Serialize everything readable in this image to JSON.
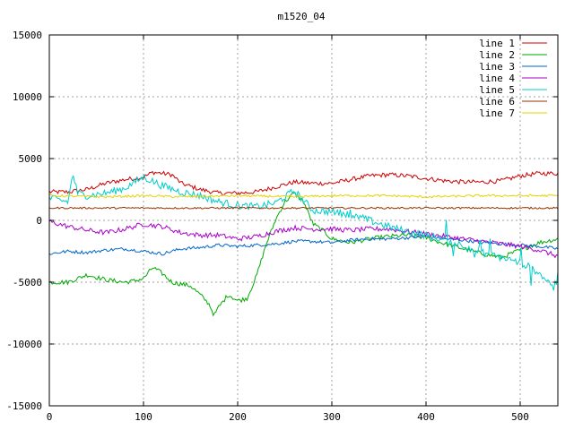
{
  "chart_data": {
    "type": "line",
    "title": "m1520_04",
    "xlabel": "",
    "ylabel": "",
    "xlim": [
      0,
      540
    ],
    "ylim": [
      -15000,
      15000
    ],
    "xticks": [
      0,
      100,
      200,
      300,
      400,
      500
    ],
    "yticks": [
      -15000,
      -10000,
      -5000,
      0,
      5000,
      10000,
      15000
    ],
    "grid": true,
    "legend_position": "top-right",
    "series": [
      {
        "name": "line 1",
        "color": "#cc0000",
        "noise": 180,
        "points": [
          [
            0,
            2300
          ],
          [
            20,
            2300
          ],
          [
            40,
            2500
          ],
          [
            60,
            3000
          ],
          [
            80,
            3300
          ],
          [
            100,
            3500
          ],
          [
            110,
            3900
          ],
          [
            130,
            3700
          ],
          [
            140,
            3000
          ],
          [
            160,
            2500
          ],
          [
            180,
            2200
          ],
          [
            200,
            2200
          ],
          [
            220,
            2300
          ],
          [
            240,
            2700
          ],
          [
            260,
            3100
          ],
          [
            280,
            3000
          ],
          [
            300,
            3000
          ],
          [
            320,
            3300
          ],
          [
            340,
            3600
          ],
          [
            360,
            3700
          ],
          [
            380,
            3600
          ],
          [
            400,
            3400
          ],
          [
            420,
            3200
          ],
          [
            440,
            3100
          ],
          [
            460,
            3100
          ],
          [
            480,
            3200
          ],
          [
            500,
            3600
          ],
          [
            520,
            3800
          ],
          [
            540,
            3800
          ]
        ]
      },
      {
        "name": "line 2",
        "color": "#00aa00",
        "noise": 180,
        "points": [
          [
            0,
            -5000
          ],
          [
            20,
            -5000
          ],
          [
            40,
            -4400
          ],
          [
            60,
            -4800
          ],
          [
            80,
            -5000
          ],
          [
            90,
            -4900
          ],
          [
            100,
            -4700
          ],
          [
            110,
            -3800
          ],
          [
            120,
            -4300
          ],
          [
            130,
            -5000
          ],
          [
            150,
            -5300
          ],
          [
            160,
            -6000
          ],
          [
            170,
            -6800
          ],
          [
            175,
            -7700
          ],
          [
            180,
            -7000
          ],
          [
            185,
            -6500
          ],
          [
            190,
            -6000
          ],
          [
            200,
            -6500
          ],
          [
            210,
            -6300
          ],
          [
            220,
            -4500
          ],
          [
            230,
            -2000
          ],
          [
            240,
            0
          ],
          [
            250,
            1500
          ],
          [
            260,
            2200
          ],
          [
            270,
            1500
          ],
          [
            280,
            -300
          ],
          [
            290,
            -800
          ],
          [
            300,
            -1500
          ],
          [
            320,
            -1800
          ],
          [
            340,
            -1500
          ],
          [
            360,
            -1300
          ],
          [
            380,
            -1200
          ],
          [
            400,
            -1400
          ],
          [
            420,
            -1900
          ],
          [
            440,
            -2300
          ],
          [
            460,
            -2700
          ],
          [
            480,
            -3000
          ],
          [
            500,
            -2400
          ],
          [
            520,
            -1800
          ],
          [
            540,
            -1500
          ]
        ]
      },
      {
        "name": "line 3",
        "color": "#0066cc",
        "noise": 130,
        "points": [
          [
            0,
            -2700
          ],
          [
            20,
            -2500
          ],
          [
            40,
            -2600
          ],
          [
            60,
            -2400
          ],
          [
            80,
            -2300
          ],
          [
            100,
            -2500
          ],
          [
            120,
            -2700
          ],
          [
            140,
            -2300
          ],
          [
            160,
            -2200
          ],
          [
            180,
            -2000
          ],
          [
            200,
            -2100
          ],
          [
            220,
            -2000
          ],
          [
            240,
            -1900
          ],
          [
            260,
            -1700
          ],
          [
            280,
            -1700
          ],
          [
            300,
            -1800
          ],
          [
            320,
            -1600
          ],
          [
            340,
            -1500
          ],
          [
            360,
            -1500
          ],
          [
            380,
            -1400
          ],
          [
            400,
            -1300
          ],
          [
            420,
            -1500
          ],
          [
            440,
            -1600
          ],
          [
            460,
            -1800
          ],
          [
            480,
            -1900
          ],
          [
            500,
            -2000
          ],
          [
            520,
            -2100
          ],
          [
            540,
            -2300
          ]
        ]
      },
      {
        "name": "line 4",
        "color": "#aa00cc",
        "noise": 200,
        "points": [
          [
            0,
            -100
          ],
          [
            20,
            -500
          ],
          [
            40,
            -800
          ],
          [
            60,
            -1000
          ],
          [
            80,
            -700
          ],
          [
            100,
            -300
          ],
          [
            120,
            -500
          ],
          [
            140,
            -1000
          ],
          [
            160,
            -1200
          ],
          [
            180,
            -1200
          ],
          [
            200,
            -1500
          ],
          [
            220,
            -1300
          ],
          [
            240,
            -900
          ],
          [
            260,
            -600
          ],
          [
            280,
            -700
          ],
          [
            300,
            -700
          ],
          [
            320,
            -800
          ],
          [
            340,
            -700
          ],
          [
            360,
            -700
          ],
          [
            380,
            -900
          ],
          [
            400,
            -1100
          ],
          [
            420,
            -1300
          ],
          [
            440,
            -1500
          ],
          [
            460,
            -1700
          ],
          [
            480,
            -1900
          ],
          [
            500,
            -2100
          ],
          [
            520,
            -2400
          ],
          [
            540,
            -2900
          ]
        ]
      },
      {
        "name": "line 5",
        "color": "#00cccc",
        "noise": 300,
        "points": [
          [
            0,
            1800
          ],
          [
            20,
            1500
          ],
          [
            25,
            3800
          ],
          [
            30,
            2200
          ],
          [
            40,
            2000
          ],
          [
            60,
            2200
          ],
          [
            80,
            2600
          ],
          [
            100,
            3500
          ],
          [
            120,
            2800
          ],
          [
            140,
            2300
          ],
          [
            160,
            2000
          ],
          [
            180,
            1500
          ],
          [
            200,
            1200
          ],
          [
            220,
            1100
          ],
          [
            240,
            1400
          ],
          [
            260,
            2400
          ],
          [
            270,
            1600
          ],
          [
            280,
            800
          ],
          [
            300,
            700
          ],
          [
            320,
            500
          ],
          [
            340,
            0
          ],
          [
            360,
            -500
          ],
          [
            380,
            -900
          ],
          [
            400,
            -1200
          ],
          [
            420,
            -1600
          ],
          [
            440,
            -2000
          ],
          [
            460,
            -2600
          ],
          [
            480,
            -3000
          ],
          [
            500,
            -3400
          ],
          [
            520,
            -4200
          ],
          [
            530,
            -5000
          ],
          [
            540,
            -5300
          ]
        ]
      },
      {
        "name": "line 6",
        "color": "#993300",
        "noise": 70,
        "points": [
          [
            0,
            1000
          ],
          [
            100,
            1000
          ],
          [
            200,
            1000
          ],
          [
            300,
            1000
          ],
          [
            400,
            1000
          ],
          [
            500,
            1000
          ],
          [
            540,
            1000
          ]
        ]
      },
      {
        "name": "line 7",
        "color": "#e6d200",
        "noise": 90,
        "points": [
          [
            0,
            2000
          ],
          [
            60,
            1900
          ],
          [
            100,
            2000
          ],
          [
            140,
            1900
          ],
          [
            200,
            2000
          ],
          [
            260,
            1900
          ],
          [
            300,
            2000
          ],
          [
            360,
            2000
          ],
          [
            400,
            1900
          ],
          [
            460,
            2000
          ],
          [
            500,
            2000
          ],
          [
            540,
            2000
          ]
        ]
      }
    ]
  }
}
